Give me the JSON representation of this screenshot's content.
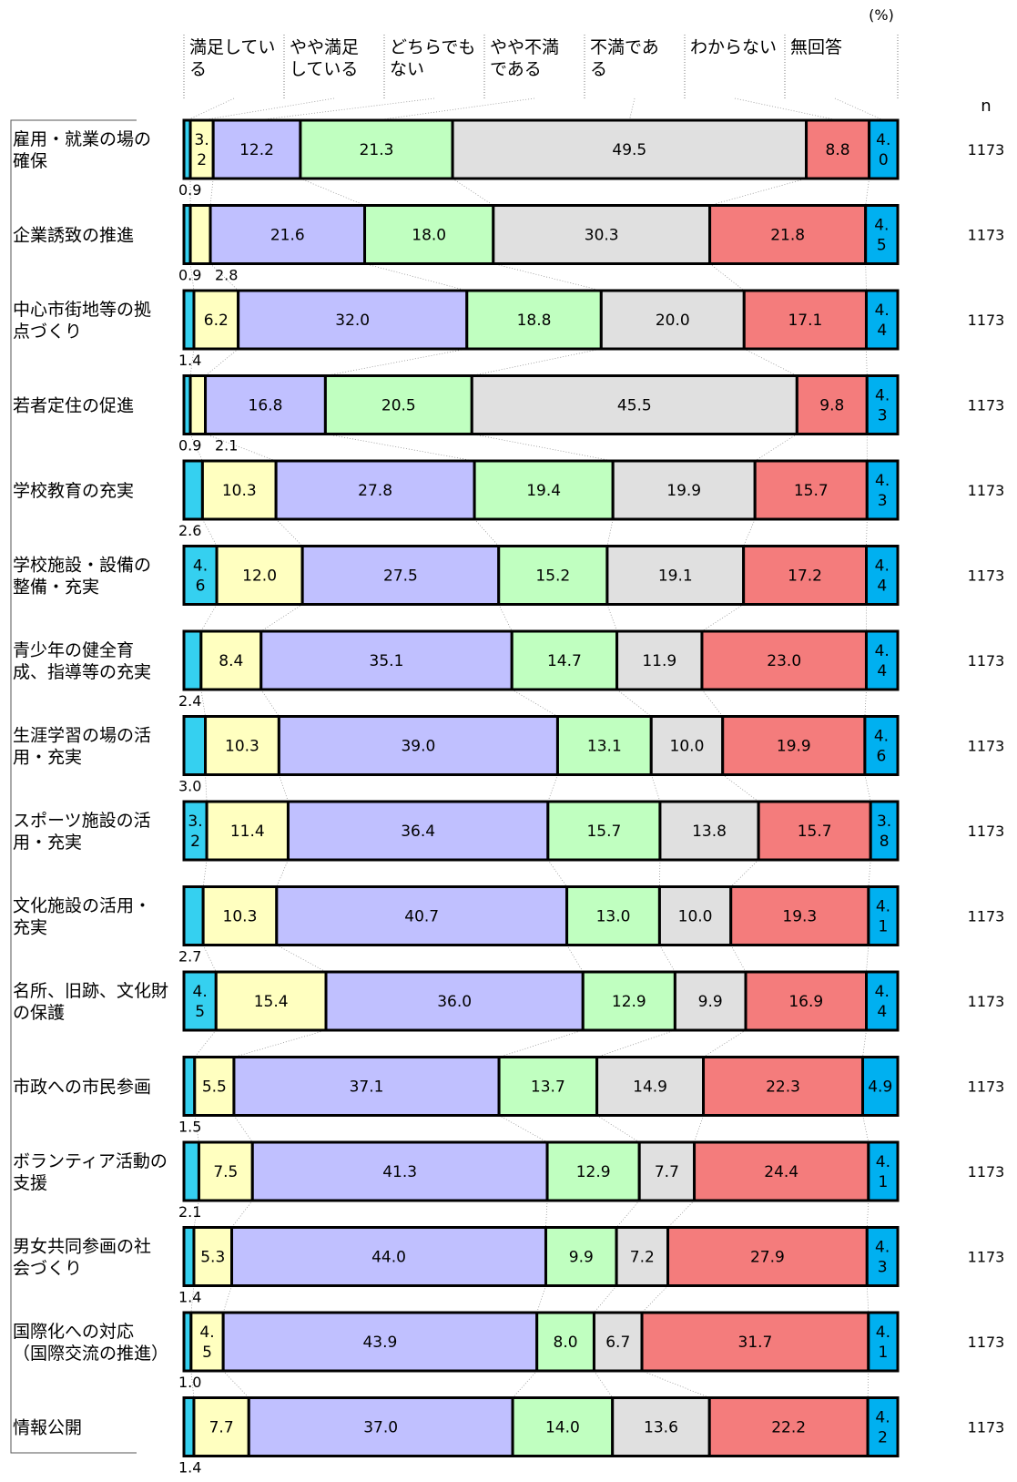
{
  "chart_data": {
    "type": "bar",
    "stacked": true,
    "orientation": "horizontal",
    "unit": "(%)",
    "n_label": "n",
    "legend_position": "top",
    "series": [
      {
        "name": "満足している",
        "color": "#35d0f0",
        "values": [
          0.9,
          0.9,
          1.4,
          0.9,
          2.6,
          4.6,
          2.4,
          3.0,
          3.2,
          2.7,
          4.5,
          1.5,
          2.1,
          1.4,
          1.0,
          1.4
        ]
      },
      {
        "name": "やや満足している",
        "color": "#ffffc0",
        "values": [
          3.2,
          2.8,
          6.2,
          2.1,
          10.3,
          12.0,
          8.4,
          10.3,
          11.4,
          10.3,
          15.4,
          5.5,
          7.5,
          5.3,
          4.5,
          7.7
        ]
      },
      {
        "name": "どちらでもない",
        "color": "#c0c0ff",
        "values": [
          12.2,
          21.6,
          32.0,
          16.8,
          27.8,
          27.5,
          35.1,
          39.0,
          36.4,
          40.7,
          36.0,
          37.1,
          41.3,
          44.0,
          43.9,
          37.0
        ]
      },
      {
        "name": "やや不満である",
        "color": "#c0ffc0",
        "values": [
          21.3,
          18.0,
          18.8,
          20.5,
          19.4,
          15.2,
          14.7,
          13.1,
          15.7,
          13.0,
          12.9,
          13.7,
          12.9,
          9.9,
          8.0,
          14.0
        ]
      },
      {
        "name": "不満である",
        "color": "#e0e0e0",
        "values": [
          49.5,
          30.3,
          20.0,
          45.5,
          19.9,
          19.1,
          11.9,
          10.0,
          13.8,
          10.0,
          9.9,
          14.9,
          7.7,
          7.2,
          6.7,
          13.6
        ]
      },
      {
        "name": "わからない",
        "color": "#f47c7c",
        "values": [
          8.8,
          21.8,
          17.1,
          9.8,
          15.7,
          17.2,
          23.0,
          19.9,
          15.7,
          19.3,
          16.9,
          22.3,
          24.4,
          27.9,
          31.7,
          22.2
        ]
      },
      {
        "name": "無回答",
        "color": "#00b0f0",
        "values": [
          4.0,
          4.5,
          4.4,
          4.3,
          4.3,
          4.4,
          4.4,
          4.6,
          3.8,
          4.1,
          4.4,
          4.9,
          4.1,
          4.3,
          4.1,
          4.2
        ]
      }
    ],
    "categories": [
      [
        "雇用・就業の場の",
        "確保"
      ],
      [
        "企業誘致の推進"
      ],
      [
        "中心市街地等の拠",
        "点づくり"
      ],
      [
        "若者定住の促進"
      ],
      [
        "学校教育の充実"
      ],
      [
        "学校施設・設備の",
        "整備・充実"
      ],
      [
        "青少年の健全育",
        "成、指導等の充実"
      ],
      [
        "生涯学習の場の活",
        "用・充実"
      ],
      [
        "スポーツ施設の活",
        "用・充実"
      ],
      [
        "文化施設の活用・",
        "充実"
      ],
      [
        "名所、旧跡、文化財",
        "の保護"
      ],
      [
        "市政への市民参画"
      ],
      [
        "ボランティア活動の",
        "支援"
      ],
      [
        "男女共同参画の社",
        "会づくり"
      ],
      [
        "国際化への対応",
        "（国際交流の推進）"
      ],
      [
        "情報公開"
      ]
    ],
    "n_values": [
      "1173",
      "1173",
      "1173",
      "1173",
      "1173",
      "1173",
      "1173",
      "1173",
      "1173",
      "1173",
      "1173",
      "1173",
      "1173",
      "1173",
      "1173",
      "1173"
    ],
    "xlim": [
      0,
      100
    ]
  }
}
